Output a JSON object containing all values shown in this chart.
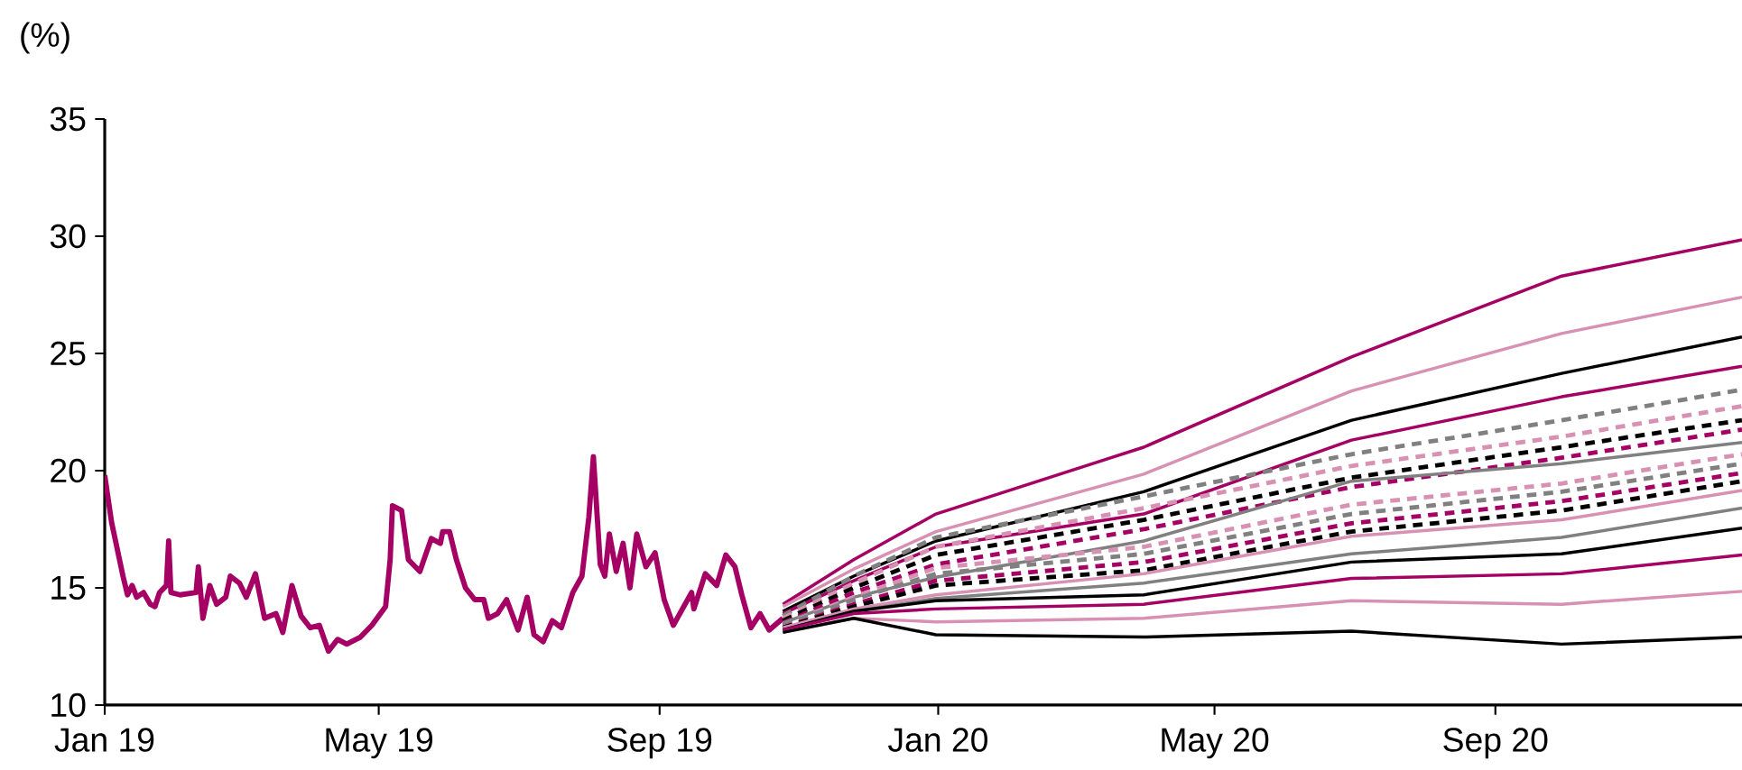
{
  "chart_data": {
    "type": "line",
    "ylabel": "(%)",
    "x": [
      "2019-10-25",
      "2019-11-25",
      "2019-12-31",
      "2020-03-31",
      "2020-06-30",
      "2020-09-30",
      "2020-12-18"
    ],
    "xlim": [
      "2019-01-01",
      "2020-12-18"
    ],
    "xticks": [
      {
        "value": "2019-01-01",
        "label": "Jan 19"
      },
      {
        "value": "2019-05-01",
        "label": "May 19"
      },
      {
        "value": "2019-09-01",
        "label": "Sep 19"
      },
      {
        "value": "2020-01-01",
        "label": "Jan 20"
      },
      {
        "value": "2020-05-01",
        "label": "May 20"
      },
      {
        "value": "2020-09-01",
        "label": "Sep 20"
      }
    ],
    "ylim": [
      10,
      35
    ],
    "yticks": [
      10,
      15,
      20,
      25,
      30,
      35
    ],
    "grid": false,
    "marker": "none",
    "series": [
      {
        "color": "#a50064",
        "line_style": "solid",
        "x": [
          "2019-01-01",
          "2019-01-04",
          "2019-01-09",
          "2019-01-11",
          "2019-01-13",
          "2019-01-15",
          "2019-01-18",
          "2019-01-21",
          "2019-01-23",
          "2019-01-25",
          "2019-01-28",
          "2019-01-29",
          "2019-01-30",
          "2019-02-03",
          "2019-02-10",
          "2019-02-11",
          "2019-02-13",
          "2019-02-16",
          "2019-02-19",
          "2019-02-23",
          "2019-02-25",
          "2019-03-01",
          "2019-03-04",
          "2019-03-08",
          "2019-03-12",
          "2019-03-17",
          "2019-03-20",
          "2019-03-24",
          "2019-03-28",
          "2019-04-01",
          "2019-04-05",
          "2019-04-09",
          "2019-04-13",
          "2019-04-17",
          "2019-04-23",
          "2019-04-28",
          "2019-05-04",
          "2019-05-06",
          "2019-05-07",
          "2019-05-11",
          "2019-05-14",
          "2019-05-19",
          "2019-05-24",
          "2019-05-28",
          "2019-05-29",
          "2019-06-01",
          "2019-06-04",
          "2019-06-08",
          "2019-06-12",
          "2019-06-16",
          "2019-06-18",
          "2019-06-22",
          "2019-06-26",
          "2019-07-01",
          "2019-07-05",
          "2019-07-08",
          "2019-07-12",
          "2019-07-16",
          "2019-07-20",
          "2019-07-25",
          "2019-07-29",
          "2019-08-01",
          "2019-08-03",
          "2019-08-06",
          "2019-08-08",
          "2019-08-10",
          "2019-08-13",
          "2019-08-16",
          "2019-08-19",
          "2019-08-22",
          "2019-08-26",
          "2019-08-30",
          "2019-09-03",
          "2019-09-07",
          "2019-09-11",
          "2019-09-15",
          "2019-09-16",
          "2019-09-21",
          "2019-09-26",
          "2019-09-30",
          "2019-10-04",
          "2019-10-07",
          "2019-10-11",
          "2019-10-15",
          "2019-10-19",
          "2019-10-25"
        ],
        "values": [
          19.8,
          17.8,
          15.5,
          14.7,
          15.1,
          14.6,
          14.8,
          14.3,
          14.2,
          14.8,
          15.1,
          17.0,
          14.8,
          14.7,
          14.8,
          15.9,
          13.7,
          15.1,
          14.3,
          14.6,
          15.5,
          15.2,
          14.6,
          15.6,
          13.7,
          13.9,
          13.1,
          15.1,
          13.8,
          13.3,
          13.4,
          12.3,
          12.8,
          12.6,
          12.9,
          13.4,
          14.2,
          16.2,
          18.5,
          18.3,
          16.2,
          15.7,
          17.1,
          16.9,
          17.4,
          17.4,
          16.2,
          15.0,
          14.5,
          14.5,
          13.7,
          13.9,
          14.5,
          13.2,
          14.6,
          13.0,
          12.7,
          13.6,
          13.3,
          14.8,
          15.5,
          18.0,
          20.6,
          16.0,
          15.5,
          17.3,
          15.7,
          16.9,
          15.0,
          17.3,
          15.9,
          16.5,
          14.5,
          13.4,
          14.1,
          14.8,
          14.1,
          15.6,
          15.1,
          16.4,
          15.9,
          14.7,
          13.3,
          13.9,
          13.2,
          13.7
        ]
      },
      {
        "color": "#a50064",
        "line_style": "solid",
        "values": [
          14.3,
          16.2,
          18.15,
          21.0,
          24.85,
          28.3,
          29.85
        ]
      },
      {
        "color": "#d890b3",
        "line_style": "solid",
        "values": [
          14.2,
          15.8,
          17.4,
          19.85,
          23.4,
          25.85,
          27.4
        ]
      },
      {
        "color": "#000000",
        "line_style": "solid",
        "values": [
          14.0,
          15.5,
          17.0,
          19.1,
          22.15,
          24.15,
          25.7
        ]
      },
      {
        "color": "#a50064",
        "line_style": "solid",
        "values": [
          13.9,
          15.3,
          16.75,
          18.15,
          21.3,
          23.15,
          24.45
        ]
      },
      {
        "color": "#808080",
        "line_style": "dashed",
        "values": [
          13.8,
          15.5,
          17.15,
          18.9,
          20.7,
          22.15,
          23.45
        ]
      },
      {
        "color": "#d890b3",
        "line_style": "dashed",
        "values": [
          13.7,
          15.2,
          16.75,
          18.4,
          20.2,
          21.45,
          22.75
        ]
      },
      {
        "color": "#000000",
        "line_style": "dashed",
        "values": [
          13.6,
          15.0,
          16.4,
          17.9,
          19.7,
          21.0,
          22.15
        ]
      },
      {
        "color": "#a50064",
        "line_style": "dashed",
        "values": [
          13.5,
          14.8,
          16.0,
          17.5,
          19.3,
          20.55,
          21.75
        ]
      },
      {
        "color": "#808080",
        "line_style": "solid",
        "values": [
          13.5,
          14.6,
          15.45,
          17.0,
          19.55,
          20.3,
          21.2
        ]
      },
      {
        "color": "#d890b3",
        "line_style": "dashed",
        "values": [
          13.4,
          14.6,
          15.85,
          16.75,
          18.55,
          19.45,
          20.7
        ]
      },
      {
        "color": "#808080",
        "line_style": "dashed",
        "values": [
          13.4,
          14.5,
          15.6,
          16.45,
          18.15,
          19.1,
          20.3
        ]
      },
      {
        "color": "#a50064",
        "line_style": "dashed",
        "values": [
          13.3,
          14.3,
          15.3,
          16.1,
          17.75,
          18.7,
          19.9
        ]
      },
      {
        "color": "#000000",
        "line_style": "dashed",
        "values": [
          13.3,
          14.2,
          15.1,
          15.75,
          17.4,
          18.3,
          19.55
        ]
      },
      {
        "color": "#d890b3",
        "line_style": "solid",
        "values": [
          13.3,
          14.1,
          14.7,
          15.6,
          17.2,
          17.9,
          19.15
        ]
      },
      {
        "color": "#808080",
        "line_style": "solid",
        "values": [
          13.2,
          14.0,
          14.55,
          15.2,
          16.45,
          17.15,
          18.4
        ]
      },
      {
        "color": "#000000",
        "line_style": "solid",
        "values": [
          13.2,
          14.0,
          14.45,
          14.7,
          16.1,
          16.45,
          17.55
        ]
      },
      {
        "color": "#a50064",
        "line_style": "solid",
        "values": [
          13.2,
          13.9,
          14.1,
          14.3,
          15.4,
          15.6,
          16.4
        ]
      },
      {
        "color": "#d890b3",
        "line_style": "solid",
        "values": [
          13.1,
          13.7,
          13.55,
          13.7,
          14.45,
          14.3,
          14.85
        ]
      },
      {
        "color": "#000000",
        "line_style": "solid",
        "values": [
          13.1,
          13.7,
          13.0,
          12.9,
          13.15,
          12.6,
          12.9
        ]
      }
    ]
  }
}
